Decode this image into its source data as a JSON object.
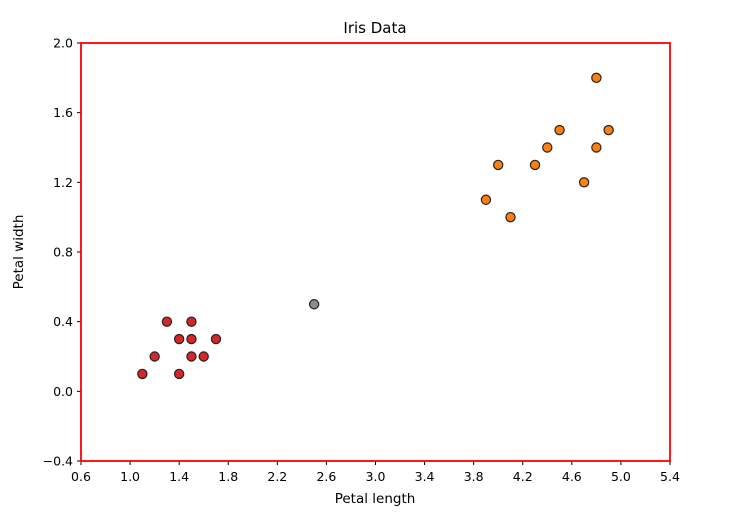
{
  "chart_data": {
    "type": "scatter",
    "title": "Iris Data",
    "xlabel": "Petal length",
    "ylabel": "Petal width",
    "xlim": [
      0.6,
      5.4
    ],
    "ylim": [
      -0.4,
      2.0
    ],
    "xticks": [
      0.6,
      1.0,
      1.4,
      1.8,
      2.2,
      2.6,
      3.0,
      3.4,
      3.8,
      4.2,
      4.6,
      5.0,
      5.4
    ],
    "yticks": [
      -0.4,
      0.0,
      0.4,
      0.8,
      1.2,
      1.6,
      2.0
    ],
    "xtick_labels": [
      "0.6",
      "1.0",
      "1.4",
      "1.8",
      "2.2",
      "2.6",
      "3.0",
      "3.4",
      "3.8",
      "4.2",
      "4.6",
      "5.0",
      "5.4"
    ],
    "ytick_labels": [
      "−0.4",
      "0.0",
      "0.4",
      "0.8",
      "1.2",
      "1.6",
      "2.0"
    ],
    "grid": false,
    "frame_color": "#ff0000",
    "point_edge_color": "#222222",
    "series": [
      {
        "color": "#d62728",
        "points": [
          [
            1.1,
            0.1
          ],
          [
            1.2,
            0.2
          ],
          [
            1.3,
            0.4
          ],
          [
            1.4,
            0.3
          ],
          [
            1.4,
            0.1
          ],
          [
            1.5,
            0.4
          ],
          [
            1.5,
            0.3
          ],
          [
            1.5,
            0.2
          ],
          [
            1.6,
            0.2
          ],
          [
            1.7,
            0.3
          ]
        ]
      },
      {
        "color": "#ff7f0e",
        "points": [
          [
            3.9,
            1.1
          ],
          [
            4.0,
            1.3
          ],
          [
            4.1,
            1.0
          ],
          [
            4.3,
            1.3
          ],
          [
            4.4,
            1.4
          ],
          [
            4.5,
            1.5
          ],
          [
            4.7,
            1.2
          ],
          [
            4.8,
            1.8
          ],
          [
            4.8,
            1.4
          ],
          [
            4.9,
            1.5
          ]
        ]
      },
      {
        "color": "#8c8c8c",
        "points": [
          [
            2.5,
            0.5
          ]
        ]
      }
    ]
  }
}
